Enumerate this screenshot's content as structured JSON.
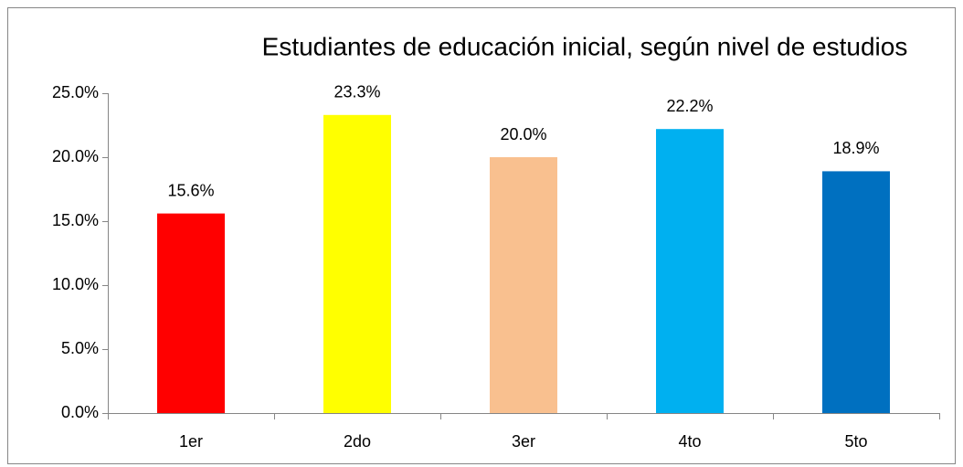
{
  "chart_data": {
    "type": "bar",
    "title": "Estudiantes de educación inicial, según nivel de estudios",
    "categories": [
      "1er",
      "2do",
      "3er",
      "4to",
      "5to"
    ],
    "values": [
      15.6,
      23.3,
      20.0,
      22.2,
      18.9
    ],
    "value_labels": [
      "15.6%",
      "23.3%",
      "20.0%",
      "22.2%",
      "18.9%"
    ],
    "colors": [
      "#ff0000",
      "#ffff00",
      "#f9c08f",
      "#00b0f0",
      "#0070c0"
    ],
    "ylim": [
      0,
      25
    ],
    "yticks": [
      {
        "value": 0,
        "label": "0.0%"
      },
      {
        "value": 5,
        "label": "5.0%"
      },
      {
        "value": 10,
        "label": "10.0%"
      },
      {
        "value": 15,
        "label": "15.0%"
      },
      {
        "value": 20,
        "label": "20.0%"
      },
      {
        "value": 25,
        "label": "25.0%"
      }
    ],
    "grid": false
  }
}
